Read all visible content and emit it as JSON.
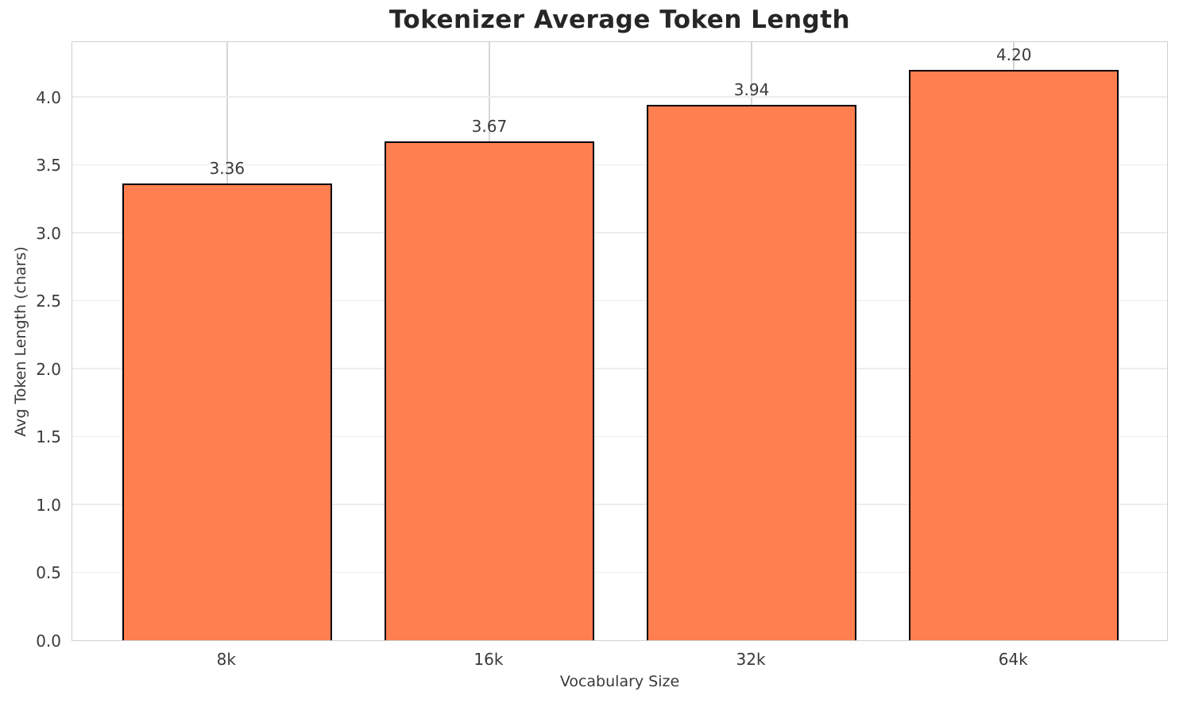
{
  "chart_data": {
    "type": "bar",
    "title": "Tokenizer Average Token Length",
    "xlabel": "Vocabulary Size",
    "ylabel": "Avg Token Length (chars)",
    "categories": [
      "8k",
      "16k",
      "32k",
      "64k"
    ],
    "values": [
      3.36,
      3.67,
      3.94,
      4.2
    ],
    "value_labels": [
      "3.36",
      "3.67",
      "3.94",
      "4.20"
    ],
    "yticks": [
      0.0,
      0.5,
      1.0,
      1.5,
      2.0,
      2.5,
      3.0,
      3.5,
      4.0
    ],
    "ytick_labels": [
      "0.0",
      "0.5",
      "1.0",
      "1.5",
      "2.0",
      "2.5",
      "3.0",
      "3.5",
      "4.0"
    ],
    "ylim": [
      0,
      4.415
    ],
    "grid": true,
    "legend": false,
    "colors": {
      "bar_fill": "#ff7f50",
      "bar_edge": "#000000",
      "grid_horizontal": "#ededed",
      "grid_vertical": "#d6d6d6",
      "spine": "#d0d0d0",
      "tick_text": "#3a3a3a",
      "title_text": "#262626",
      "background": "#ffffff"
    }
  }
}
